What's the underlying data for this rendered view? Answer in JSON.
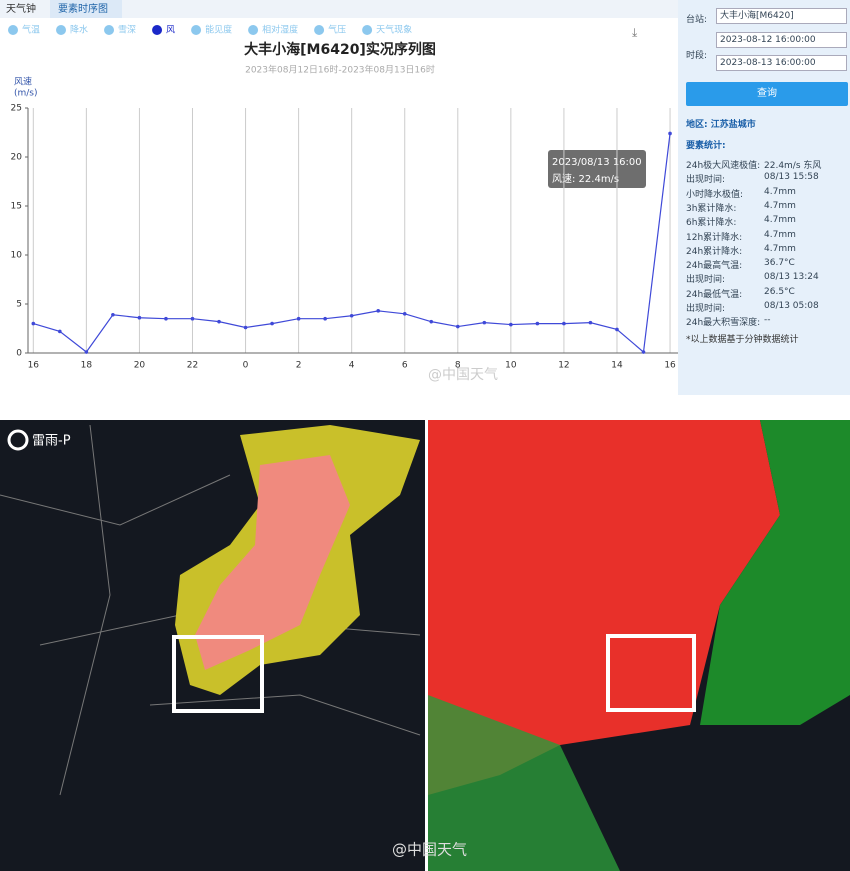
{
  "tabs": [
    "天气钟",
    "要素时序图"
  ],
  "legend": [
    "气温",
    "降水",
    "雪深",
    "风",
    "能见度",
    "相对湿度",
    "气压",
    "天气现象"
  ],
  "chart_data": {
    "type": "line",
    "title": "大丰小海[M6420]实况序列图",
    "subtitle": "2023年08月12日16时-2023年08月13日16时",
    "y_label": "风速",
    "y_unit": "(m/s)",
    "x": [
      0,
      1,
      2,
      3,
      4,
      5,
      6,
      7,
      8,
      9,
      10,
      11,
      12,
      13,
      14,
      15,
      16,
      17,
      18,
      19,
      20,
      21,
      22,
      23,
      24
    ],
    "series": [
      {
        "name": "风",
        "color": "#3f49d8",
        "values": [
          3.0,
          2.2,
          0.1,
          3.9,
          3.6,
          3.5,
          3.5,
          3.2,
          2.6,
          3.0,
          3.5,
          3.5,
          3.8,
          4.3,
          4.0,
          3.2,
          2.7,
          3.1,
          2.9,
          3.0,
          3.0,
          3.1,
          2.4,
          0.1,
          22.4
        ]
      }
    ],
    "xlim": [
      -0.2,
      24.3
    ],
    "xticks": [
      {
        "value": 0,
        "label": "16"
      },
      {
        "value": 2,
        "label": "18"
      },
      {
        "value": 4,
        "label": "20"
      },
      {
        "value": 6,
        "label": "22"
      },
      {
        "value": 8,
        "label": "0"
      },
      {
        "value": 10,
        "label": "2"
      },
      {
        "value": 12,
        "label": "4"
      },
      {
        "value": 14,
        "label": "6"
      },
      {
        "value": 16,
        "label": "8"
      },
      {
        "value": 18,
        "label": "10"
      },
      {
        "value": 20,
        "label": "12"
      },
      {
        "value": 22,
        "label": "14"
      },
      {
        "value": 24,
        "label": "16"
      }
    ],
    "ylim": [
      0,
      25
    ],
    "yticks": [
      0,
      5,
      10,
      15,
      20,
      25
    ],
    "grid": "x",
    "tooltip": {
      "time": "2023/08/13 16:00",
      "text": "风速: 22.4m/s"
    }
  },
  "sidebar": {
    "station_label": "台站:",
    "station": "大丰小海[M6420]",
    "period_label": "时段:",
    "start": "2023-08-12 16:00:00",
    "end": "2023-08-13 16:00:00",
    "button": "查询",
    "region": "地区: 江苏盐城市",
    "stats_title": "要素统计:",
    "stats": [
      [
        "24h极大风速极值:",
        "22.4m/s 东风"
      ],
      [
        "出现时间:",
        "08/13 15:58"
      ],
      [
        "小时降水极值:",
        "4.7mm"
      ],
      [
        "3h累计降水:",
        "4.7mm"
      ],
      [
        "6h累计降水:",
        "4.7mm"
      ],
      [
        "12h累计降水:",
        "4.7mm"
      ],
      [
        "24h累计降水:",
        "4.7mm"
      ],
      [
        "24h最高气温:",
        "36.7°C"
      ],
      [
        "出现时间:",
        "08/13 13:24"
      ],
      [
        "24h最低气温:",
        "26.5°C"
      ],
      [
        "出现时间:",
        "08/13 05:08"
      ],
      [
        "24h最大积雪深度:",
        "--"
      ]
    ],
    "note": "*以上数据基于分钟数据统计"
  },
  "watermark": "@中国天气",
  "radar": {
    "logo": "雷雨-P",
    "watermark": "@中国天气"
  }
}
